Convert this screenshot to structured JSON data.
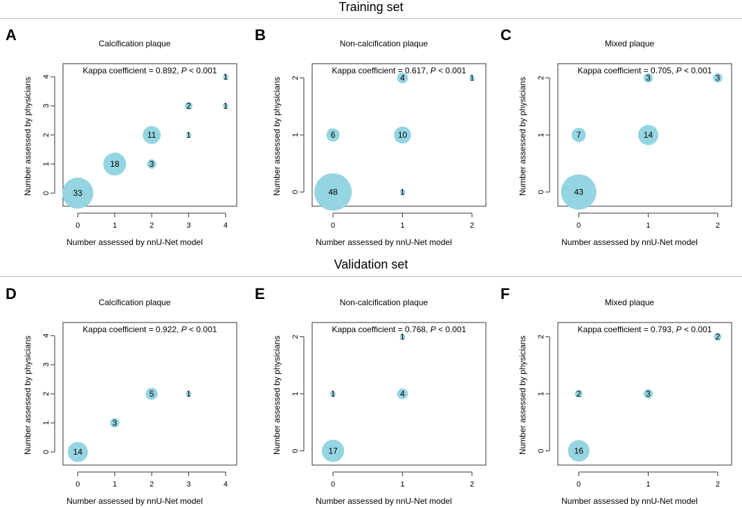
{
  "sections": [
    {
      "title": "Training set"
    },
    {
      "title": "Validation set"
    }
  ],
  "style": {
    "bubble_color": "#95D5E2",
    "frame_color": "#333333"
  },
  "chart_data": [
    {
      "letter": "A",
      "type": "scatter",
      "title": "Calcification plaque",
      "xlabel": "Number assessed by nnU-Net model",
      "ylabel": "Number assessed by physicians",
      "xlim": [
        -0.4,
        4.3
      ],
      "ylim": [
        -0.45,
        4.45
      ],
      "xticks": [
        0,
        1,
        2,
        3,
        4
      ],
      "yticks": [
        0,
        1,
        2,
        3,
        4
      ],
      "annotation": {
        "prefix": "Kappa coefficient = 0.892, ",
        "p_symbol": "P",
        "suffix": " < 0.001"
      },
      "points": [
        {
          "x": 0,
          "y": 0,
          "n": 33
        },
        {
          "x": 1,
          "y": 1,
          "n": 18
        },
        {
          "x": 2,
          "y": 1,
          "n": 3
        },
        {
          "x": 2,
          "y": 2,
          "n": 11
        },
        {
          "x": 3,
          "y": 2,
          "n": 1
        },
        {
          "x": 3,
          "y": 3,
          "n": 2
        },
        {
          "x": 4,
          "y": 3,
          "n": 1
        },
        {
          "x": 4,
          "y": 4,
          "n": 1
        }
      ]
    },
    {
      "letter": "B",
      "type": "scatter",
      "title": "Non-calcification plaque",
      "xlabel": "Number assessed by nnU-Net model",
      "ylabel": "Number assessed by physicians",
      "xlim": [
        -0.3,
        2.2
      ],
      "ylim": [
        -0.25,
        2.25
      ],
      "xticks": [
        0,
        1,
        2
      ],
      "yticks": [
        0,
        1,
        2
      ],
      "annotation": {
        "prefix": "Kappa coefficient = 0.617, ",
        "p_symbol": "P",
        "suffix": " < 0.001"
      },
      "points": [
        {
          "x": 0,
          "y": 0,
          "n": 48
        },
        {
          "x": 1,
          "y": 0,
          "n": 1
        },
        {
          "x": 0,
          "y": 1,
          "n": 6
        },
        {
          "x": 1,
          "y": 1,
          "n": 10
        },
        {
          "x": 1,
          "y": 2,
          "n": 4
        },
        {
          "x": 2,
          "y": 2,
          "n": 1
        }
      ]
    },
    {
      "letter": "C",
      "type": "scatter",
      "title": "Mixed plaque",
      "xlabel": "Number assessed by nnU-Net model",
      "ylabel": "Number assessed by physicians",
      "xlim": [
        -0.3,
        2.2
      ],
      "ylim": [
        -0.25,
        2.25
      ],
      "xticks": [
        0,
        1,
        2
      ],
      "yticks": [
        0,
        1,
        2
      ],
      "annotation": {
        "prefix": "Kappa coefficient = 0.705, ",
        "p_symbol": "P",
        "suffix": " < 0.001"
      },
      "points": [
        {
          "x": 0,
          "y": 0,
          "n": 43
        },
        {
          "x": 0,
          "y": 1,
          "n": 7
        },
        {
          "x": 1,
          "y": 1,
          "n": 14
        },
        {
          "x": 1,
          "y": 2,
          "n": 3
        },
        {
          "x": 2,
          "y": 2,
          "n": 3
        }
      ]
    },
    {
      "letter": "D",
      "type": "scatter",
      "title": "Calcification plaque",
      "xlabel": "Number assessed by nnU-Net model",
      "ylabel": "Number assessed by physicians",
      "xlim": [
        -0.4,
        4.3
      ],
      "ylim": [
        -0.45,
        4.45
      ],
      "xticks": [
        0,
        1,
        2,
        3,
        4
      ],
      "yticks": [
        0,
        1,
        2,
        3,
        4
      ],
      "annotation": {
        "prefix": "Kappa coefficient = 0.922, ",
        "p_symbol": "P",
        "suffix": " < 0.001"
      },
      "points": [
        {
          "x": 0,
          "y": 0,
          "n": 14
        },
        {
          "x": 1,
          "y": 1,
          "n": 3
        },
        {
          "x": 2,
          "y": 2,
          "n": 5
        },
        {
          "x": 3,
          "y": 2,
          "n": 1
        }
      ]
    },
    {
      "letter": "E",
      "type": "scatter",
      "title": "Non-calcification plaque",
      "xlabel": "Number assessed by nnU-Net model",
      "ylabel": "Number assessed by physicians",
      "xlim": [
        -0.3,
        2.2
      ],
      "ylim": [
        -0.25,
        2.25
      ],
      "xticks": [
        0,
        1,
        2
      ],
      "yticks": [
        0,
        1,
        2
      ],
      "annotation": {
        "prefix": "Kappa coefficient = 0.768, ",
        "p_symbol": "P",
        "suffix": " < 0.001"
      },
      "points": [
        {
          "x": 0,
          "y": 0,
          "n": 17
        },
        {
          "x": 0,
          "y": 1,
          "n": 1
        },
        {
          "x": 1,
          "y": 1,
          "n": 4
        },
        {
          "x": 1,
          "y": 2,
          "n": 1
        }
      ]
    },
    {
      "letter": "F",
      "type": "scatter",
      "title": "Mixed plaque",
      "xlabel": "Number assessed by nnU-Net model",
      "ylabel": "Number assessed by physicians",
      "xlim": [
        -0.3,
        2.2
      ],
      "ylim": [
        -0.25,
        2.25
      ],
      "xticks": [
        0,
        1,
        2
      ],
      "yticks": [
        0,
        1,
        2
      ],
      "annotation": {
        "prefix": "Kappa coefficient = 0.793, ",
        "p_symbol": "P",
        "suffix": " < 0.001"
      },
      "points": [
        {
          "x": 0,
          "y": 0,
          "n": 16
        },
        {
          "x": 0,
          "y": 1,
          "n": 2
        },
        {
          "x": 1,
          "y": 1,
          "n": 3
        },
        {
          "x": 2,
          "y": 2,
          "n": 2
        }
      ]
    }
  ]
}
